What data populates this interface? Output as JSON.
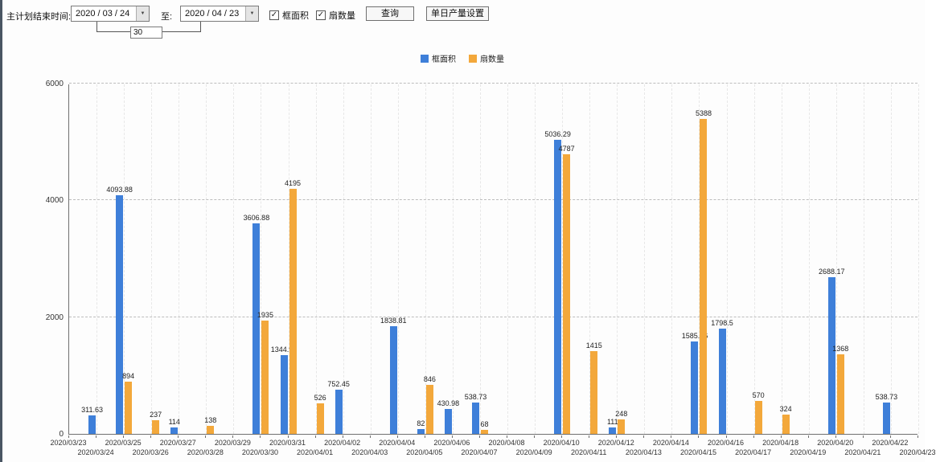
{
  "toolbar": {
    "start_label": "主计划结束时间:",
    "date_from": "2020 / 03 / 24",
    "to_label": "至:",
    "date_to": "2020 / 04 / 23",
    "interval_days": "30",
    "series1_checkbox": "框面积",
    "series2_checkbox": "扇数量",
    "query_button": "查询",
    "daily_output_button": "单日产量设置"
  },
  "icons": {
    "check": "✓",
    "dropdown_arrow": "▼"
  },
  "chart_data": {
    "type": "bar",
    "title": "",
    "xlabel": "",
    "ylabel": "",
    "ylim": [
      0,
      6000
    ],
    "yticks": [
      0,
      2000,
      4000,
      6000
    ],
    "grid": true,
    "legend_position": "top",
    "categories": [
      "2020/03/23",
      "2020/03/24",
      "2020/03/25",
      "2020/03/26",
      "2020/03/27",
      "2020/03/28",
      "2020/03/29",
      "2020/03/30",
      "2020/03/31",
      "2020/04/01",
      "2020/04/02",
      "2020/04/03",
      "2020/04/04",
      "2020/04/05",
      "2020/04/06",
      "2020/04/07",
      "2020/04/08",
      "2020/04/09",
      "2020/04/10",
      "2020/04/11",
      "2020/04/12",
      "2020/04/13",
      "2020/04/14",
      "2020/04/15",
      "2020/04/16",
      "2020/04/17",
      "2020/04/18",
      "2020/04/19",
      "2020/04/20",
      "2020/04/21",
      "2020/04/22",
      "2020/04/23"
    ],
    "series": [
      {
        "name": "框面积",
        "color": "#3e7fd9",
        "values": [
          null,
          311.63,
          4093.88,
          null,
          114,
          null,
          null,
          3606.88,
          1344.95,
          null,
          752.45,
          null,
          1838.81,
          82,
          430.98,
          538.73,
          null,
          null,
          5036.29,
          null,
          111,
          null,
          null,
          1585.96,
          1798.5,
          null,
          null,
          null,
          2688.17,
          null,
          538.73,
          null
        ]
      },
      {
        "name": "扇数量",
        "color": "#f3a83b",
        "values": [
          null,
          null,
          894,
          237,
          null,
          138,
          null,
          1935,
          4195,
          526,
          null,
          null,
          null,
          846,
          null,
          68,
          null,
          null,
          4787,
          1415,
          248,
          null,
          null,
          5388,
          null,
          570,
          324,
          null,
          1368,
          null,
          null,
          null
        ]
      }
    ]
  }
}
